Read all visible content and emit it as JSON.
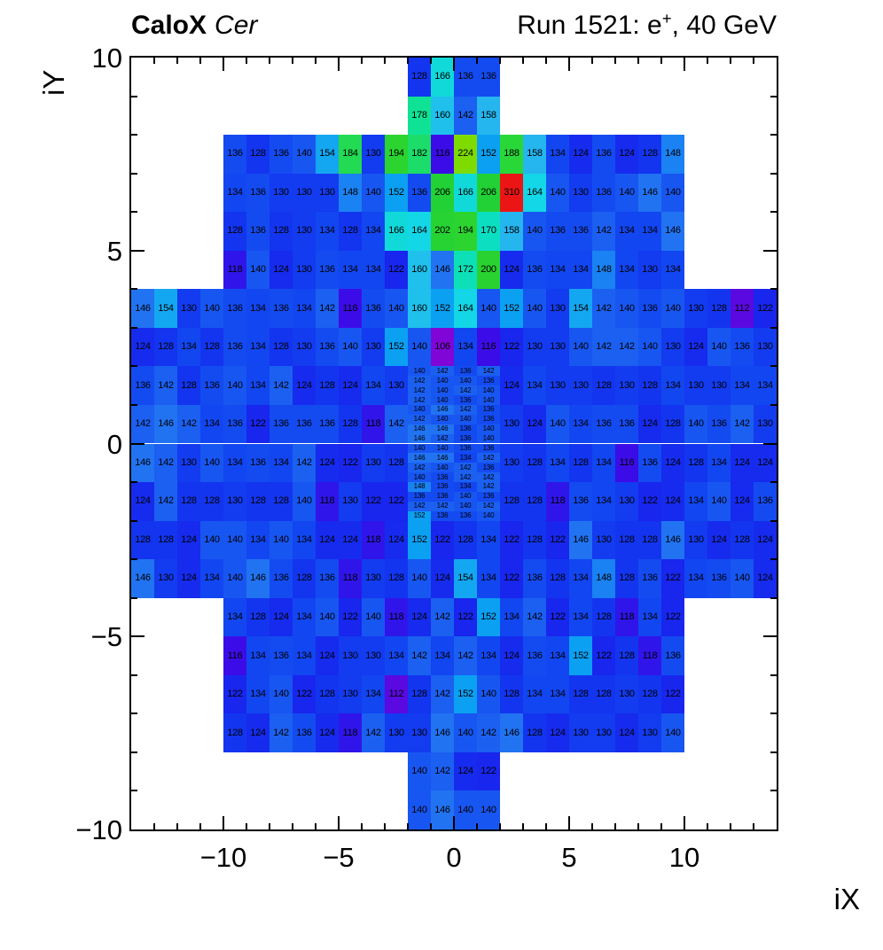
{
  "chart_data": {
    "type": "heatmap",
    "title": {
      "left_bold": "CaloX",
      "left_italic": "Cer",
      "right_pre": "Run 1521: e",
      "right_sup": "+",
      "right_post": ", 40 GeV"
    },
    "xlabel": "iX",
    "ylabel": "iY",
    "xlim": [
      -14,
      14
    ],
    "ylim": [
      -10,
      10
    ],
    "grid": false,
    "x_ticks": {
      "values": [
        -10,
        -5,
        0,
        5,
        10
      ],
      "labels": [
        "−10",
        "−5",
        "0",
        "5",
        "10"
      ],
      "minor_step": 1
    },
    "y_ticks": {
      "values": [
        -10,
        -5,
        0,
        5,
        10
      ],
      "labels": [
        "−10",
        "−5",
        "0",
        "5",
        "10"
      ],
      "minor_step": 1
    },
    "cell_text_color": "#000000",
    "frame_color": "#000000",
    "background_color": "#ffffff",
    "colormap": [
      [
        104,
        "#8a06d4"
      ],
      [
        110,
        "#6a07dd"
      ],
      [
        116,
        "#3c0ce8"
      ],
      [
        122,
        "#1826ee"
      ],
      [
        128,
        "#1335ef"
      ],
      [
        134,
        "#1246f1"
      ],
      [
        140,
        "#1856f1"
      ],
      [
        146,
        "#2173f2"
      ],
      [
        152,
        "#0ba0f2"
      ],
      [
        158,
        "#25b5ef"
      ],
      [
        164,
        "#13d6e6"
      ],
      [
        170,
        "#0cdfc1"
      ],
      [
        178,
        "#10e295"
      ],
      [
        186,
        "#28d83c"
      ],
      [
        196,
        "#2dd32d"
      ],
      [
        208,
        "#20d138"
      ],
      [
        224,
        "#7edb00"
      ],
      [
        264,
        "#eb9e00"
      ],
      [
        310,
        "#ec1515"
      ]
    ],
    "rows": [
      {
        "y": 9.5,
        "x_start": -2,
        "values": [
          128,
          166,
          136,
          136
        ]
      },
      {
        "y": 8.5,
        "x_start": -2,
        "values": [
          178,
          160,
          142,
          158
        ]
      },
      {
        "y": 7.5,
        "x_start": -10,
        "values": [
          136,
          128,
          136,
          140,
          154,
          184,
          130,
          194,
          182,
          116,
          224,
          152,
          188,
          158,
          134,
          124,
          136,
          124,
          128,
          148
        ]
      },
      {
        "y": 6.5,
        "x_start": -10,
        "values": [
          134,
          136,
          130,
          130,
          130,
          148,
          140,
          152,
          136,
          206,
          166,
          206,
          310,
          164,
          140,
          130,
          136,
          140,
          146,
          140
        ]
      },
      {
        "y": 5.5,
        "x_start": -10,
        "values": [
          128,
          136,
          128,
          130,
          134,
          128,
          134,
          166,
          164,
          202,
          194,
          170,
          158,
          140,
          136,
          136,
          142,
          134,
          134,
          146
        ]
      },
      {
        "y": 4.5,
        "x_start": -10,
        "values": [
          118,
          140,
          124,
          130,
          136,
          134,
          134,
          122,
          160,
          146,
          172,
          200,
          124,
          136,
          134,
          134,
          148,
          134,
          130,
          134
        ]
      },
      {
        "y": 3.5,
        "x_start": -14,
        "values": [
          146,
          154,
          130,
          140,
          136,
          134,
          136,
          134,
          142,
          116,
          136,
          140,
          160,
          152,
          164,
          140,
          152,
          140,
          130,
          154,
          142,
          140,
          136,
          140,
          130,
          128,
          112,
          122
        ]
      },
      {
        "y": 2.5,
        "x_start": -14,
        "values": [
          124,
          128,
          134,
          128,
          136,
          134,
          128,
          130,
          136,
          140,
          130,
          152,
          140,
          106,
          134,
          116,
          122,
          130,
          130,
          140,
          142,
          142,
          140,
          130,
          124,
          140,
          136,
          130
        ]
      },
      {
        "y": 1.5,
        "x_start": -14,
        "values": [
          136,
          142,
          128,
          136,
          140,
          134,
          142,
          124,
          128,
          124,
          134,
          130
        ]
      },
      {
        "y": 1.5,
        "x_start": 2,
        "values": [
          124,
          134,
          130,
          130,
          128,
          130,
          128,
          134,
          130,
          130,
          134,
          134
        ]
      },
      {
        "y": 0.5,
        "x_start": -14,
        "values": [
          142,
          146,
          142,
          134,
          136,
          122,
          136,
          136,
          136,
          128,
          118,
          142
        ]
      },
      {
        "y": 0.5,
        "x_start": 2,
        "values": [
          130,
          124,
          140,
          134,
          136,
          136,
          124,
          128,
          140,
          136,
          142,
          130
        ]
      },
      {
        "y": -0.5,
        "x_start": -14,
        "values": [
          146,
          142,
          130,
          140,
          134,
          136,
          134,
          142,
          124,
          122,
          130,
          128
        ]
      },
      {
        "y": -0.5,
        "x_start": 2,
        "values": [
          130,
          128,
          134,
          128,
          134,
          116,
          136,
          124,
          128,
          134,
          124,
          124
        ]
      },
      {
        "y": -1.5,
        "x_start": -14,
        "values": [
          124,
          142,
          128,
          128,
          130,
          128,
          128,
          140,
          118,
          130,
          122,
          122
        ]
      },
      {
        "y": -1.5,
        "x_start": 2,
        "values": [
          128,
          128,
          118,
          136,
          134,
          130,
          122,
          124,
          134,
          140,
          124,
          136
        ]
      },
      {
        "y": -2.5,
        "x_start": -14,
        "values": [
          128,
          128,
          124,
          140,
          140,
          134,
          140,
          134,
          124,
          124,
          118,
          124,
          152,
          122,
          128,
          134,
          122,
          128,
          122,
          146,
          130,
          128,
          128,
          146,
          130,
          124,
          128,
          124
        ]
      },
      {
        "y": -3.5,
        "x_start": -14,
        "values": [
          146,
          130,
          124,
          134,
          140,
          146,
          136,
          128,
          136,
          118,
          130,
          128,
          140,
          124,
          154,
          134,
          122,
          136,
          128,
          134,
          148,
          128,
          136,
          122,
          134,
          136,
          140,
          124
        ]
      },
      {
        "y": -4.5,
        "x_start": -10,
        "values": [
          134,
          128,
          124,
          134,
          140,
          122,
          140,
          118,
          124,
          142,
          122,
          152,
          134,
          142,
          122,
          134,
          128,
          118,
          134,
          122
        ]
      },
      {
        "y": -5.5,
        "x_start": -10,
        "values": [
          116,
          134,
          136,
          134,
          124,
          130,
          130,
          134,
          142,
          134,
          142,
          134,
          124,
          136,
          134,
          152,
          122,
          128,
          118,
          136
        ]
      },
      {
        "y": -6.5,
        "x_start": -10,
        "values": [
          122,
          134,
          140,
          122,
          128,
          130,
          134,
          112,
          128,
          142,
          152,
          140,
          128,
          134,
          134,
          128,
          128,
          130,
          128,
          122
        ]
      },
      {
        "y": -7.5,
        "x_start": -10,
        "values": [
          128,
          124,
          142,
          136,
          124,
          118,
          142,
          130,
          130,
          146,
          140,
          142,
          146,
          128,
          124,
          130,
          130,
          124,
          130,
          140
        ]
      },
      {
        "y": -8.5,
        "x_start": -2,
        "values": [
          140,
          142,
          124,
          122
        ]
      },
      {
        "y": -9.5,
        "x_start": -2,
        "values": [
          140,
          146,
          140,
          140
        ]
      }
    ],
    "fine_block": {
      "x_start": -2,
      "y_top": 2,
      "cols": 4,
      "col_width": 1,
      "row_height": 0.25,
      "rows": [
        [
          140,
          142,
          136,
          142
        ],
        [
          142,
          140,
          140,
          136
        ],
        [
          142,
          140,
          142,
          140
        ],
        [
          142,
          140,
          136,
          140
        ],
        [
          140,
          146,
          142,
          136
        ],
        [
          142,
          140,
          140,
          136
        ],
        [
          146,
          146,
          136,
          140
        ],
        [
          146,
          142,
          136,
          140
        ],
        [
          140,
          140,
          136,
          136
        ],
        [
          146,
          146,
          134,
          142
        ],
        [
          142,
          140,
          142,
          136
        ],
        [
          140,
          136,
          142,
          142
        ],
        [
          148,
          136,
          134,
          142
        ],
        [
          136,
          136,
          140,
          136
        ],
        [
          142,
          142,
          140,
          142
        ],
        [
          152,
          136,
          136,
          140
        ]
      ]
    }
  }
}
